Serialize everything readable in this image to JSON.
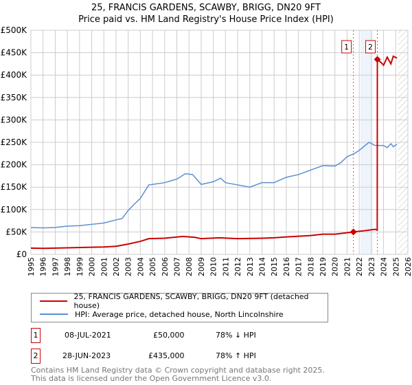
{
  "title": "25, FRANCIS GARDENS, SCAWBY, BRIGG, DN20 9FT",
  "subtitle": "Price paid vs. HM Land Registry's House Price Index (HPI)",
  "colors": {
    "property": "#cc0000",
    "hpi": "#5b8fd0",
    "shade": "#eef3fc"
  },
  "chart_data": {
    "type": "line",
    "xlim": [
      1995,
      2026
    ],
    "ylim": [
      0,
      500000
    ],
    "yticks": [
      "£0",
      "£50K",
      "£100K",
      "£150K",
      "£200K",
      "£250K",
      "£300K",
      "£350K",
      "£400K",
      "£450K",
      "£500K"
    ],
    "xticks": [
      "1995",
      "1996",
      "1997",
      "1998",
      "1999",
      "2000",
      "2001",
      "2002",
      "2003",
      "2004",
      "2005",
      "2006",
      "2007",
      "2008",
      "2009",
      "2010",
      "2011",
      "2012",
      "2013",
      "2014",
      "2015",
      "2016",
      "2017",
      "2018",
      "2019",
      "2020",
      "2021",
      "2022",
      "2023",
      "2024",
      "2025",
      "2026"
    ],
    "shaded_range": [
      2022.1,
      2023.1
    ],
    "forecast_from": 2025.2,
    "series": [
      {
        "name": "25, FRANCIS GARDENS, SCAWBY, BRIGG, DN20 9FT (detached house)",
        "color": "#cc0000",
        "x": [
          1995,
          1996,
          1997,
          2000,
          2001,
          2002,
          2003,
          2004,
          2004.7,
          2006,
          2007.5,
          2008.5,
          2009,
          2010.5,
          2012,
          2014,
          2015,
          2016,
          2018,
          2019,
          2020,
          2021.52,
          2022.5,
          2023.3,
          2023.48,
          2023.49,
          2023.8,
          2024,
          2024.3,
          2024.6,
          2024.8,
          2025.1
        ],
        "y": [
          14000,
          13500,
          14000,
          16000,
          16500,
          18000,
          23000,
          29000,
          35000,
          36000,
          40000,
          38000,
          35000,
          37000,
          35000,
          36000,
          37000,
          39000,
          42000,
          45000,
          45000,
          50000,
          53000,
          56000,
          54000,
          435000,
          428000,
          422000,
          440000,
          425000,
          442000,
          438000
        ]
      },
      {
        "name": "HPI: Average price, detached house, North Lincolnshire",
        "color": "#5b8fd0",
        "x": [
          1995,
          1996,
          1997,
          1998,
          1999,
          2000,
          2001,
          2002,
          2002.5,
          2003,
          2003.5,
          2004,
          2004.7,
          2005,
          2006,
          2007,
          2007.7,
          2008.3,
          2009,
          2010,
          2010.6,
          2011,
          2012,
          2013,
          2014,
          2015,
          2016,
          2017,
          2018,
          2019,
          2020,
          2020.5,
          2021,
          2021.6,
          2022,
          2022.8,
          2023.3,
          2024,
          2024.3,
          2024.6,
          2024.8,
          2025.1
        ],
        "y": [
          60000,
          59000,
          60000,
          63000,
          64000,
          67000,
          70000,
          77000,
          80000,
          98000,
          112000,
          125000,
          155000,
          156000,
          160000,
          168000,
          180000,
          178000,
          156000,
          162000,
          170000,
          160000,
          155000,
          150000,
          160000,
          160000,
          172000,
          178000,
          188000,
          198000,
          197000,
          205000,
          218000,
          225000,
          232000,
          250000,
          243000,
          243000,
          238000,
          247000,
          240000,
          246000
        ]
      }
    ],
    "sales": [
      {
        "label": "1",
        "x": 2021.52,
        "y": 50000
      },
      {
        "label": "2",
        "x": 2023.49,
        "y": 435000
      }
    ]
  },
  "legend": {
    "property": "25, FRANCIS GARDENS, SCAWBY, BRIGG, DN20 9FT (detached house)",
    "hpi": "HPI: Average price, detached house, North Lincolnshire"
  },
  "transactions": [
    {
      "num": "1",
      "date": "08-JUL-2021",
      "price": "£50,000",
      "delta": "78% ↓ HPI"
    },
    {
      "num": "2",
      "date": "28-JUN-2023",
      "price": "£435,000",
      "delta": "78% ↑ HPI"
    }
  ],
  "footer": {
    "line1": "Contains HM Land Registry data © Crown copyright and database right 2025.",
    "line2": "This data is licensed under the Open Government Licence v3.0."
  }
}
